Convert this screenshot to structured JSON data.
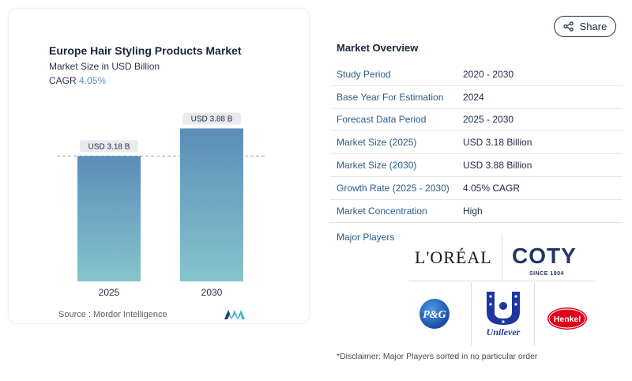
{
  "chart_data": {
    "type": "bar",
    "title": "Europe Hair Styling Products Market",
    "subtitle": "Market Size in USD Billion",
    "cagr_label": "CAGR",
    "cagr_value": "4.05%",
    "categories": [
      "2025",
      "2030"
    ],
    "values": [
      3.18,
      3.88
    ],
    "data_labels": [
      "USD 3.18 B",
      "USD 3.88 B"
    ],
    "ylim": [
      0,
      4.25
    ],
    "grid": false,
    "bar_color_top": "#5b8db8",
    "bar_color_bottom": "#86c4cc"
  },
  "source": "Source :  Mordor Intelligence",
  "share_label": "Share",
  "overview": {
    "title": "Market Overview",
    "rows": [
      {
        "label": "Study Period",
        "value": "2020 - 2030"
      },
      {
        "label": "Base Year For Estimation",
        "value": "2024"
      },
      {
        "label": "Forecast Data Period",
        "value": "2025 - 2030"
      },
      {
        "label": "Market Size (2025)",
        "value": "USD 3.18 Billion"
      },
      {
        "label": "Market Size (2030)",
        "value": "USD 3.88 Billion"
      },
      {
        "label": "Growth Rate (2025 - 2030)",
        "value": "4.05% CAGR"
      },
      {
        "label": "Market Concentration",
        "value": "High"
      }
    ]
  },
  "players": {
    "label": "Major Players",
    "loreal": "L'ORÉAL",
    "coty": "COTY",
    "coty_since": "SINCE 1904",
    "pg": "P&G",
    "unilever": "Unilever",
    "henkel": "Henkel"
  },
  "disclaimer": "*Disclaimer: Major Players sorted in no particular order",
  "colors": {
    "accent": "#2b5c8a",
    "pg_blue": "#1f5fb5",
    "unilever_blue": "#1f36a0",
    "henkel_red": "#e0001b"
  }
}
